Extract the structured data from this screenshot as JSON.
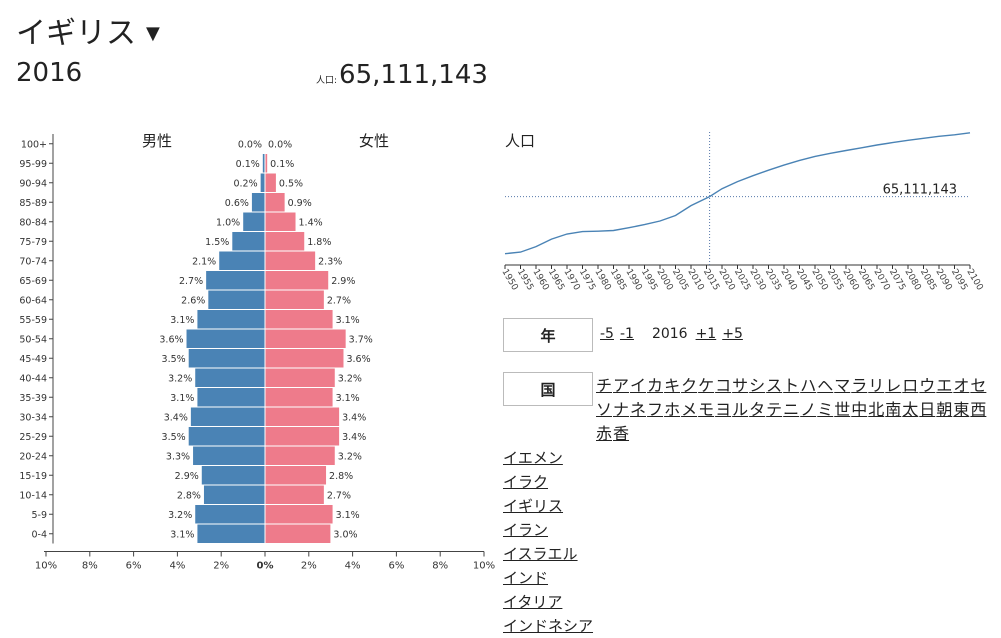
{
  "header": {
    "country": "イギリス",
    "caret": "▼",
    "year": "2016",
    "population_label": "人口:",
    "population": "65,111,143"
  },
  "pyramid": {
    "male_label": "男性",
    "female_label": "女性",
    "x_ticks_left": [
      "10%",
      "8%",
      "6%",
      "4%",
      "2%",
      "0%"
    ],
    "x_ticks_right": [
      "2%",
      "4%",
      "6%",
      "8%",
      "10%"
    ]
  },
  "line_chart": {
    "title": "人口",
    "value_label": "65,111,143"
  },
  "controls": {
    "year_button": "年",
    "minus5": "-5",
    "minus1": "-1",
    "current_year": "2016",
    "plus1": "+1",
    "plus5": "+5",
    "country_button": "国"
  },
  "initials": [
    "チ",
    "ア",
    "イ",
    "カ",
    "キ",
    "ク",
    "ケ",
    "コ",
    "サ",
    "シ",
    "ス",
    "ト",
    "ハ",
    "ヘ",
    "マ",
    "ラ",
    "リ",
    "レ",
    "ロ",
    "ウ",
    "エ",
    "オ",
    "セ",
    "ソ",
    "ナ",
    "ネ",
    "フ",
    "ホ",
    "メ",
    "モ",
    "ヨ",
    "ル",
    "タ",
    "テ",
    "ニ",
    "ノ",
    "ミ",
    "世",
    "中",
    "北",
    "南",
    "太",
    "日",
    "朝",
    "東",
    "西",
    "赤",
    "香"
  ],
  "countries": [
    "イエメン",
    "イラク",
    "イギリス",
    "イラン",
    "イスラエル",
    "インド",
    "イタリア",
    "インドネシア"
  ],
  "colors": {
    "male": "#4a83b5",
    "female": "#ee7b8b",
    "line": "#4a83b5"
  },
  "chart_data": [
    {
      "type": "bar",
      "orientation": "horizontal",
      "categories": [
        "100+",
        "95-99",
        "90-94",
        "85-89",
        "80-84",
        "75-79",
        "70-74",
        "65-69",
        "60-64",
        "55-59",
        "50-54",
        "45-49",
        "40-44",
        "35-39",
        "30-34",
        "25-29",
        "20-24",
        "15-19",
        "10-14",
        "5-9",
        "0-4"
      ],
      "series": [
        {
          "name": "男性",
          "values": [
            0.0,
            0.1,
            0.2,
            0.6,
            1.0,
            1.5,
            2.1,
            2.7,
            2.6,
            3.1,
            3.6,
            3.5,
            3.2,
            3.1,
            3.4,
            3.5,
            3.3,
            2.9,
            2.8,
            3.2,
            3.1
          ]
        },
        {
          "name": "女性",
          "values": [
            0.0,
            0.1,
            0.5,
            0.9,
            1.4,
            1.8,
            2.3,
            2.9,
            2.7,
            3.1,
            3.7,
            3.6,
            3.2,
            3.1,
            3.4,
            3.4,
            3.2,
            2.8,
            2.7,
            3.1,
            3.0
          ]
        }
      ],
      "value_labels_male": [
        "0.0%",
        "0.1%",
        "0.2%",
        "0.6%",
        "1.0%",
        "1.5%",
        "2.1%",
        "2.7%",
        "2.6%",
        "3.1%",
        "3.6%",
        "3.5%",
        "3.2%",
        "3.1%",
        "3.4%",
        "3.5%",
        "3.3%",
        "2.9%",
        "2.8%",
        "3.2%",
        "3.1%"
      ],
      "value_labels_female": [
        "0.0%",
        "0.1%",
        "0.5%",
        "0.9%",
        "1.4%",
        "1.8%",
        "2.3%",
        "2.9%",
        "2.7%",
        "3.1%",
        "3.7%",
        "3.6%",
        "3.2%",
        "3.1%",
        "3.4%",
        "3.4%",
        "3.2%",
        "2.8%",
        "2.7%",
        "3.1%",
        "3.0%"
      ],
      "xlim": [
        -10,
        10
      ]
    },
    {
      "type": "line",
      "title": "人口",
      "x": [
        1950,
        1955,
        1960,
        1965,
        1970,
        1975,
        1980,
        1985,
        1990,
        1995,
        2000,
        2005,
        2010,
        2016,
        2020,
        2025,
        2030,
        2035,
        2040,
        2045,
        2050,
        2055,
        2060,
        2065,
        2070,
        2075,
        2080,
        2085,
        2090,
        2095,
        2100
      ],
      "y": [
        50.6,
        51.0,
        52.4,
        54.3,
        55.6,
        56.2,
        56.3,
        56.5,
        57.2,
        58.0,
        58.9,
        60.3,
        62.8,
        65.1,
        67.1,
        68.9,
        70.4,
        71.8,
        73.1,
        74.3,
        75.3,
        76.1,
        76.8,
        77.5,
        78.2,
        78.8,
        79.4,
        79.9,
        80.4,
        80.8,
        81.3
      ],
      "x_ticks": [
        "1950",
        "1955",
        "1960",
        "1965",
        "1970",
        "1975",
        "1980",
        "1985",
        "1990",
        "1995",
        "2000",
        "2005",
        "2010",
        "2015",
        "2020",
        "2025",
        "2030",
        "2035",
        "2040",
        "2045",
        "2050",
        "2055",
        "2060",
        "2065",
        "2070",
        "2075",
        "2080",
        "2085",
        "2090",
        "2095",
        "2100"
      ],
      "marker_x": 2016,
      "marker_y": 65.1
    }
  ]
}
